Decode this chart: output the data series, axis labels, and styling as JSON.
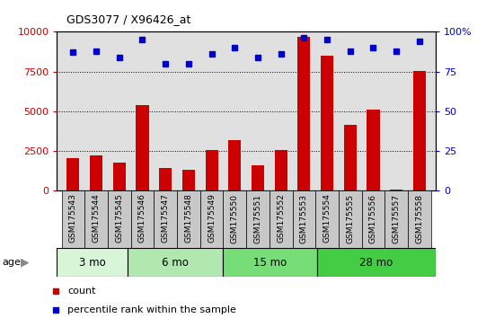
{
  "title": "GDS3077 / X96426_at",
  "samples": [
    "GSM175543",
    "GSM175544",
    "GSM175545",
    "GSM175546",
    "GSM175547",
    "GSM175548",
    "GSM175549",
    "GSM175550",
    "GSM175551",
    "GSM175552",
    "GSM175553",
    "GSM175554",
    "GSM175555",
    "GSM175556",
    "GSM175557",
    "GSM175558"
  ],
  "counts": [
    2050,
    2250,
    1800,
    5400,
    1450,
    1300,
    2550,
    3200,
    1600,
    2550,
    9700,
    8500,
    4150,
    5100,
    100,
    7550
  ],
  "percentiles": [
    87,
    88,
    84,
    95,
    80,
    80,
    86,
    90,
    84,
    86,
    96,
    95,
    88,
    90,
    88,
    94
  ],
  "age_groups": [
    {
      "label": "3 mo",
      "start": 0,
      "end": 3
    },
    {
      "label": "6 mo",
      "start": 3,
      "end": 7
    },
    {
      "label": "15 mo",
      "start": 7,
      "end": 11
    },
    {
      "label": "28 mo",
      "start": 11,
      "end": 16
    }
  ],
  "bar_color": "#cc0000",
  "dot_color": "#0000cc",
  "ylim_left": [
    0,
    10000
  ],
  "ylim_right": [
    0,
    100
  ],
  "yticks_left": [
    0,
    2500,
    5000,
    7500,
    10000
  ],
  "yticks_right": [
    0,
    25,
    50,
    75,
    100
  ],
  "grid_values": [
    2500,
    5000,
    7500
  ],
  "plot_bg": "#e0e0e0",
  "label_bg": "#c8c8c8",
  "age_band_colors": [
    "#d8f5d8",
    "#b0e8b0",
    "#77dd77",
    "#44cc44"
  ],
  "age_band_border_colors": [
    "#aaccaa",
    "#88bb88",
    "#44aa44",
    "#228822"
  ],
  "legend_count_color": "#cc0000",
  "legend_pct_color": "#0000cc"
}
